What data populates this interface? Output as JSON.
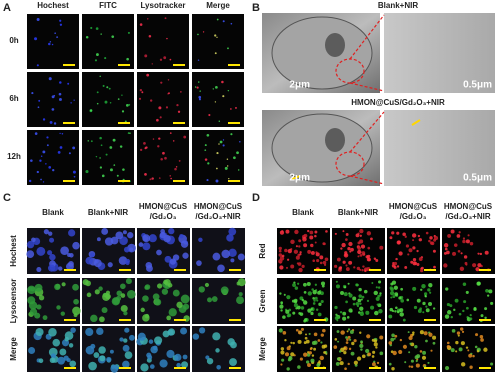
{
  "panels": {
    "A": {
      "label": "A",
      "columns": [
        "Hochest",
        "FITC",
        "Lysotracker",
        "Merge"
      ],
      "rows": [
        "0h",
        "6h",
        "12h"
      ]
    },
    "B": {
      "label": "B",
      "conditions": [
        {
          "title": "Blank+NIR",
          "scale_bars": [
            "2μm",
            "0.5μm"
          ]
        },
        {
          "title": "HMON@CuS/Gd₂O₃+NIR",
          "scale_bars": [
            "2μm",
            "0.5μm"
          ]
        }
      ]
    },
    "C": {
      "label": "C",
      "columns": [
        [
          "Blank"
        ],
        [
          "Blank+NIR"
        ],
        [
          "HMON@CuS",
          "/Gd₂O₃"
        ],
        [
          "HMON@CuS",
          "/Gd₂O₃+NIR"
        ]
      ],
      "rows": [
        "Hochest",
        "Lysosensor",
        "Merge"
      ]
    },
    "D": {
      "label": "D",
      "columns": [
        [
          "Blank"
        ],
        [
          "Blank+NIR"
        ],
        [
          "HMON@CuS",
          "/Gd₂O₃"
        ],
        [
          "HMON@CuS",
          "/Gd₂O₃+NIR"
        ]
      ],
      "rows": [
        "Red",
        "Green",
        "Merge"
      ]
    }
  }
}
